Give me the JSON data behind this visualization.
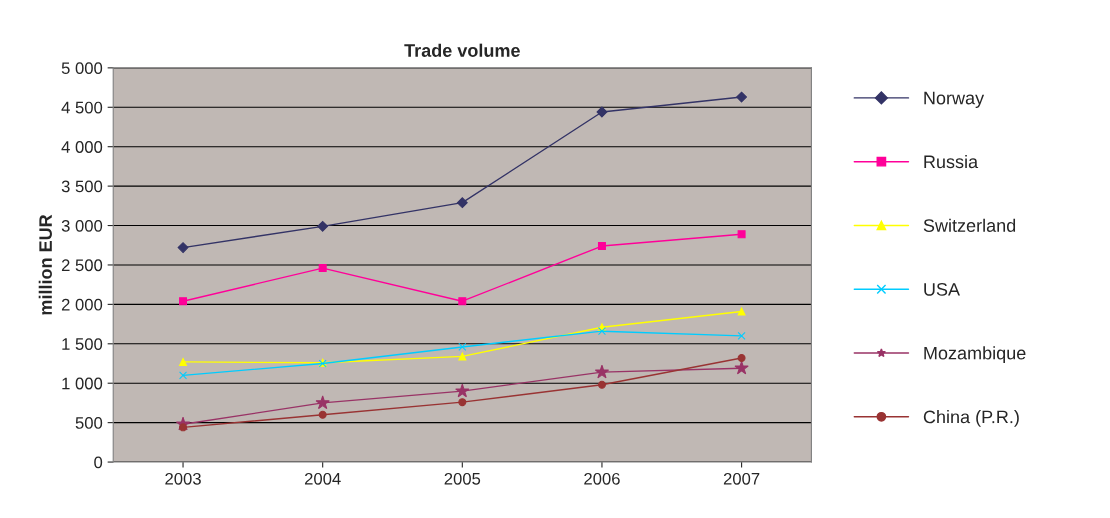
{
  "chart_data": {
    "type": "line",
    "title": "Trade volume",
    "ylabel": "million EUR",
    "categories": [
      "2003",
      "2004",
      "2005",
      "2006",
      "2007"
    ],
    "series": [
      {
        "name": "Norway",
        "color": "#333366",
        "marker": "diamond",
        "values": [
          2720,
          2990,
          3290,
          4440,
          4630
        ]
      },
      {
        "name": "Russia",
        "color": "#ff0099",
        "marker": "square",
        "values": [
          2040,
          2460,
          2040,
          2740,
          2890
        ]
      },
      {
        "name": "Switzerland",
        "color": "#ffff00",
        "marker": "triangle",
        "values": [
          1270,
          1260,
          1340,
          1710,
          1910
        ]
      },
      {
        "name": "USA",
        "color": "#00ccff",
        "marker": "cross",
        "values": [
          1100,
          1250,
          1460,
          1660,
          1600
        ]
      },
      {
        "name": "Mozambique",
        "color": "#993366",
        "marker": "star",
        "values": [
          480,
          750,
          900,
          1140,
          1190
        ]
      },
      {
        "name": "China (P.R.)",
        "color": "#993333",
        "marker": "circle",
        "values": [
          440,
          600,
          760,
          980,
          1320
        ]
      }
    ],
    "ylim": [
      0,
      5000
    ],
    "yticks": [
      0,
      {
        "value": 500,
        "label": "500"
      },
      {
        "value": 1000,
        "label": "1 000"
      },
      {
        "value": 1500,
        "label": "1 500"
      },
      {
        "value": 2000,
        "label": "2 000"
      },
      {
        "value": 2500,
        "label": "2 500"
      },
      {
        "value": 3000,
        "label": "3 000"
      },
      {
        "value": 3500,
        "label": "3 500"
      },
      {
        "value": 4000,
        "label": "4 000"
      },
      {
        "value": 4500,
        "label": "4 500"
      },
      {
        "value": 5000,
        "label": "5 000"
      }
    ],
    "grid": "y",
    "legend": "right",
    "line_style": "solid"
  }
}
